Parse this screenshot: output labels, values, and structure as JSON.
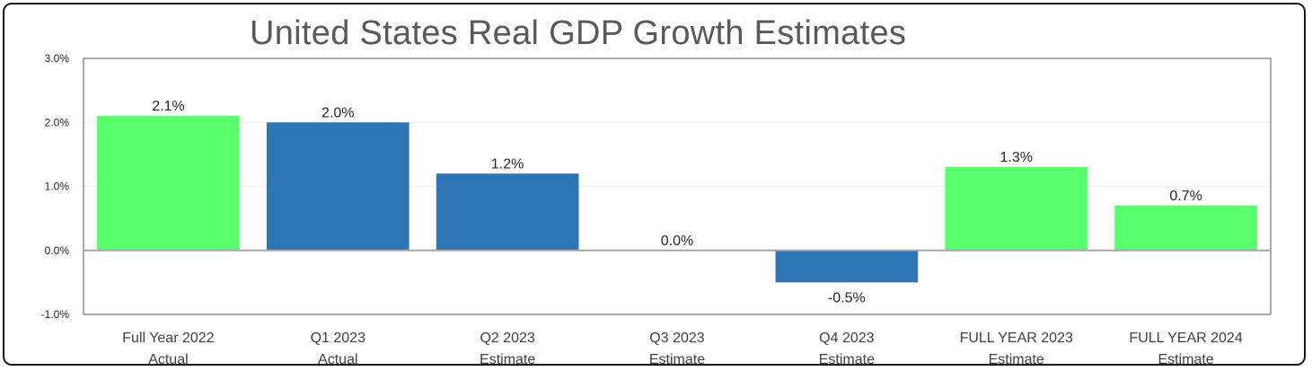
{
  "chart_data": {
    "type": "bar",
    "title": "United States Real GDP Growth Estimates",
    "xlabel": "",
    "ylabel": "",
    "ylim": [
      -1.0,
      3.0
    ],
    "yticks": [
      "-1.0%",
      "0.0%",
      "1.0%",
      "2.0%",
      "3.0%"
    ],
    "ytick_values": [
      -1.0,
      0.0,
      1.0,
      2.0,
      3.0
    ],
    "grid": true,
    "categories": [
      [
        "Full Year 2022",
        "Actual"
      ],
      [
        "Q1 2023",
        "Actual"
      ],
      [
        "Q2 2023",
        "Estimate"
      ],
      [
        "Q3 2023",
        "Estimate"
      ],
      [
        "Q4 2023",
        "Estimate"
      ],
      [
        "FULL YEAR 2023",
        "Estimate"
      ],
      [
        "FULL YEAR 2024",
        "Estimate"
      ]
    ],
    "values": [
      2.1,
      2.0,
      1.2,
      0.0,
      -0.5,
      1.3,
      0.7
    ],
    "data_labels": [
      "2.1%",
      "2.0%",
      "1.2%",
      "0.0%",
      "-0.5%",
      "1.3%",
      "0.7%"
    ],
    "bar_colors": [
      "#57ff6d",
      "#2e75b6",
      "#2e75b6",
      "#2e75b6",
      "#2e75b6",
      "#57ff6d",
      "#57ff6d"
    ]
  }
}
